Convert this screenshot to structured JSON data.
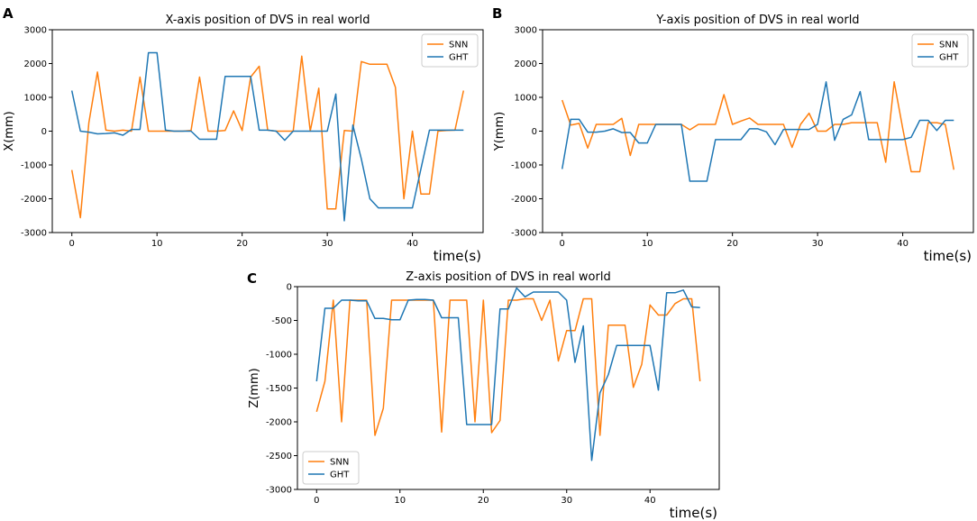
{
  "colors": {
    "snn": "#ff7f0e",
    "ght": "#1f77b4"
  },
  "chart_data": [
    {
      "id": "A",
      "type": "line",
      "panel_label": "A",
      "title": "X-axis position of DVS in real world",
      "xlabel": "time(s)",
      "ylabel": "X(mm)",
      "xlim": [
        -2.3,
        48.3
      ],
      "ylim": [
        -3000,
        3000
      ],
      "xticks": [
        0,
        10,
        20,
        30,
        40
      ],
      "yticks": [
        -3000,
        -2000,
        -1000,
        0,
        1000,
        2000,
        3000
      ],
      "legend_position": "upper right",
      "legend": [
        "SNN",
        "GHT"
      ],
      "x": [
        0,
        1,
        2,
        3,
        4,
        5,
        6,
        7,
        8,
        9,
        10,
        11,
        12,
        13,
        14,
        15,
        16,
        17,
        18,
        19,
        20,
        21,
        22,
        23,
        24,
        25,
        26,
        27,
        28,
        29,
        30,
        31,
        32,
        33,
        34,
        35,
        36,
        37,
        38,
        39,
        40,
        41,
        42,
        43,
        44,
        45,
        46
      ],
      "series": [
        {
          "name": "SNN",
          "values": [
            -1150,
            -2560,
            250,
            1750,
            30,
            0,
            30,
            0,
            1600,
            0,
            0,
            0,
            0,
            0,
            20,
            1600,
            0,
            0,
            20,
            600,
            20,
            1600,
            1920,
            30,
            0,
            0,
            0,
            2220,
            0,
            1270,
            -2300,
            -2300,
            20,
            0,
            2060,
            1980,
            1980,
            1980,
            1300,
            -2000,
            0,
            -1860,
            -1860,
            0,
            20,
            30,
            1200
          ]
        },
        {
          "name": "GHT",
          "values": [
            1200,
            0,
            -30,
            -80,
            -70,
            -50,
            -120,
            50,
            50,
            2320,
            2320,
            30,
            0,
            0,
            0,
            -240,
            -240,
            -240,
            1620,
            1620,
            1620,
            1620,
            30,
            30,
            0,
            -270,
            0,
            0,
            0,
            0,
            0,
            1100,
            -2650,
            180,
            -820,
            -2000,
            -2270,
            -2270,
            -2270,
            -2270,
            -2270,
            -1120,
            30,
            30,
            30,
            30,
            30
          ]
        }
      ]
    },
    {
      "id": "B",
      "type": "line",
      "panel_label": "B",
      "title": "Y-axis position of DVS in real world",
      "xlabel": "time(s)",
      "ylabel": "Y(mm)",
      "xlim": [
        -2.3,
        48.3
      ],
      "ylim": [
        -3000,
        3000
      ],
      "xticks": [
        0,
        10,
        20,
        30,
        40
      ],
      "yticks": [
        -3000,
        -2000,
        -1000,
        0,
        1000,
        2000,
        3000
      ],
      "legend_position": "upper right",
      "legend": [
        "SNN",
        "GHT"
      ],
      "x": [
        0,
        1,
        2,
        3,
        4,
        5,
        6,
        7,
        8,
        9,
        10,
        11,
        12,
        13,
        14,
        15,
        16,
        17,
        18,
        19,
        20,
        21,
        22,
        23,
        24,
        25,
        26,
        27,
        28,
        29,
        30,
        31,
        32,
        33,
        34,
        35,
        36,
        37,
        38,
        39,
        40,
        41,
        42,
        43,
        44,
        45,
        46
      ],
      "series": [
        {
          "name": "SNN",
          "values": [
            920,
            180,
            230,
            -500,
            200,
            200,
            200,
            380,
            -720,
            200,
            200,
            200,
            200,
            200,
            200,
            40,
            200,
            200,
            200,
            1080,
            200,
            300,
            390,
            200,
            200,
            200,
            200,
            -480,
            200,
            530,
            0,
            0,
            200,
            200,
            250,
            250,
            250,
            250,
            -920,
            1460,
            80,
            -1200,
            -1200,
            250,
            250,
            200,
            -1140
          ]
        },
        {
          "name": "GHT",
          "values": [
            -1120,
            350,
            350,
            -30,
            -30,
            0,
            70,
            -40,
            -40,
            -350,
            -350,
            200,
            200,
            200,
            200,
            -1480,
            -1480,
            -1480,
            -250,
            -250,
            -250,
            -250,
            70,
            70,
            -20,
            -400,
            50,
            50,
            50,
            50,
            200,
            1460,
            -270,
            350,
            480,
            1170,
            -250,
            -250,
            -250,
            -250,
            -250,
            -180,
            320,
            320,
            20,
            320,
            320
          ]
        }
      ]
    },
    {
      "id": "C",
      "type": "line",
      "panel_label": "C",
      "title": "Z-axis position of DVS in real world",
      "xlabel": "time(s)",
      "ylabel": "Z(mm)",
      "xlim": [
        -2.3,
        48.3
      ],
      "ylim": [
        -3000,
        0
      ],
      "xticks": [
        0,
        10,
        20,
        30,
        40
      ],
      "yticks": [
        -3000,
        -2500,
        -2000,
        -1500,
        -1000,
        -500,
        0
      ],
      "legend_position": "lower left",
      "legend": [
        "SNN",
        "GHT"
      ],
      "x": [
        0,
        1,
        2,
        3,
        4,
        5,
        6,
        7,
        8,
        9,
        10,
        11,
        12,
        13,
        14,
        15,
        16,
        17,
        18,
        19,
        20,
        21,
        22,
        23,
        24,
        25,
        26,
        27,
        28,
        29,
        30,
        31,
        32,
        33,
        34,
        35,
        36,
        37,
        38,
        39,
        40,
        41,
        42,
        43,
        44,
        45,
        46
      ],
      "series": [
        {
          "name": "SNN",
          "values": [
            -1850,
            -1400,
            -200,
            -2000,
            -200,
            -200,
            -200,
            -2200,
            -1800,
            -200,
            -200,
            -200,
            -200,
            -200,
            -200,
            -2150,
            -200,
            -200,
            -200,
            -2000,
            -200,
            -2160,
            -1980,
            -200,
            -200,
            -180,
            -180,
            -500,
            -200,
            -1100,
            -650,
            -650,
            -180,
            -180,
            -2200,
            -570,
            -570,
            -570,
            -1490,
            -1150,
            -270,
            -420,
            -420,
            -250,
            -180,
            -180,
            -1400
          ]
        },
        {
          "name": "GHT",
          "values": [
            -1400,
            -320,
            -320,
            -200,
            -200,
            -210,
            -210,
            -470,
            -470,
            -490,
            -490,
            -200,
            -190,
            -190,
            -200,
            -460,
            -460,
            -460,
            -2040,
            -2040,
            -2040,
            -2040,
            -330,
            -330,
            -20,
            -150,
            -80,
            -80,
            -80,
            -80,
            -200,
            -1120,
            -580,
            -2570,
            -1570,
            -1300,
            -870,
            -870,
            -870,
            -870,
            -870,
            -1530,
            -90,
            -90,
            -50,
            -300,
            -310
          ]
        }
      ]
    }
  ]
}
